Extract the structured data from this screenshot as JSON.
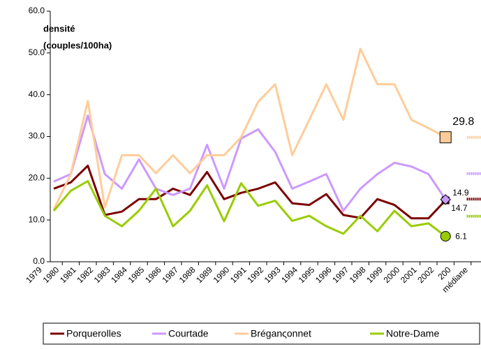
{
  "chart_data": {
    "type": "line",
    "ylabel": [
      "densité",
      "(couples/100ha)"
    ],
    "categories": [
      "1979",
      "1980",
      "1981",
      "1982",
      "1983",
      "1984",
      "1985",
      "1986",
      "1987",
      "1988",
      "1989",
      "1990",
      "1991",
      "1992",
      "1993",
      "1994",
      "1995",
      "1996",
      "1997",
      "1998",
      "1999",
      "2000",
      "2001",
      "2002",
      "200",
      "médiane"
    ],
    "ylim": [
      0,
      60
    ],
    "yticks": [
      {
        "value": 0,
        "label": "0.0"
      },
      {
        "value": 10,
        "label": "10.0"
      },
      {
        "value": 20,
        "label": "20.0"
      },
      {
        "value": 30,
        "label": "30.0"
      },
      {
        "value": 40,
        "label": "40.0"
      },
      {
        "value": 50,
        "label": "50.0"
      },
      {
        "value": 60,
        "label": "60.0"
      }
    ],
    "series": [
      {
        "name": "Porquerolles",
        "color": "#7b0000",
        "marker": "square",
        "values": [
          null,
          17.5,
          19,
          23,
          11.2,
          12,
          15,
          15,
          17.5,
          16,
          21.5,
          15,
          16.5,
          17.5,
          19,
          14,
          13.6,
          16.2,
          11.2,
          10.5,
          15,
          13.6,
          10.4,
          10.4,
          14.7,
          15
        ],
        "value_labels": [
          null,
          null,
          null,
          null,
          null,
          null,
          null,
          null,
          null,
          null,
          null,
          null,
          null,
          null,
          null,
          null,
          null,
          null,
          null,
          null,
          null,
          null,
          null,
          null,
          "14.7",
          null
        ]
      },
      {
        "name": "Courtade",
        "color": "#cc99ff",
        "marker": "diamond",
        "values": [
          null,
          19.2,
          21,
          35,
          21,
          17.5,
          24.5,
          17.5,
          16,
          17.5,
          28,
          17.5,
          29.5,
          31.7,
          26.3,
          17.5,
          19.2,
          21,
          12.2,
          17.5,
          21,
          23.7,
          22.8,
          21,
          14.9,
          21.1
        ],
        "value_labels": [
          null,
          null,
          null,
          null,
          null,
          null,
          null,
          null,
          null,
          null,
          null,
          null,
          null,
          null,
          null,
          null,
          null,
          null,
          null,
          null,
          null,
          null,
          null,
          null,
          "14.9",
          null
        ]
      },
      {
        "name": "Bréganςonnet",
        "color": "#ffcc99",
        "marker": "bigsquare",
        "values": [
          null,
          12.5,
          21,
          38.5,
          13,
          25.5,
          25.5,
          21.2,
          25.5,
          21.2,
          25.5,
          25.5,
          29.8,
          38.3,
          42.5,
          25.5,
          34,
          42.5,
          34,
          51,
          42.5,
          42.5,
          34,
          32,
          29.8,
          29.8
        ],
        "value_labels": [
          null,
          null,
          null,
          null,
          null,
          null,
          null,
          null,
          null,
          null,
          null,
          null,
          null,
          null,
          null,
          null,
          null,
          null,
          null,
          null,
          null,
          null,
          null,
          null,
          "29.8",
          null
        ]
      },
      {
        "name": "Notre-Dame",
        "color": "#99cc00",
        "marker": "circle",
        "values": [
          null,
          12.2,
          17,
          19.3,
          11,
          8.5,
          12.2,
          17.5,
          8.5,
          12.2,
          18.3,
          9.7,
          18.8,
          13.4,
          14.6,
          9.8,
          11,
          8.5,
          6.7,
          11,
          7.3,
          12.2,
          8.5,
          9.2,
          6.1,
          10.9
        ],
        "value_labels": [
          null,
          null,
          null,
          null,
          null,
          null,
          null,
          null,
          null,
          null,
          null,
          null,
          null,
          null,
          null,
          null,
          null,
          null,
          null,
          null,
          null,
          null,
          null,
          null,
          "6.1",
          null
        ]
      }
    ],
    "legend": "bottom"
  }
}
